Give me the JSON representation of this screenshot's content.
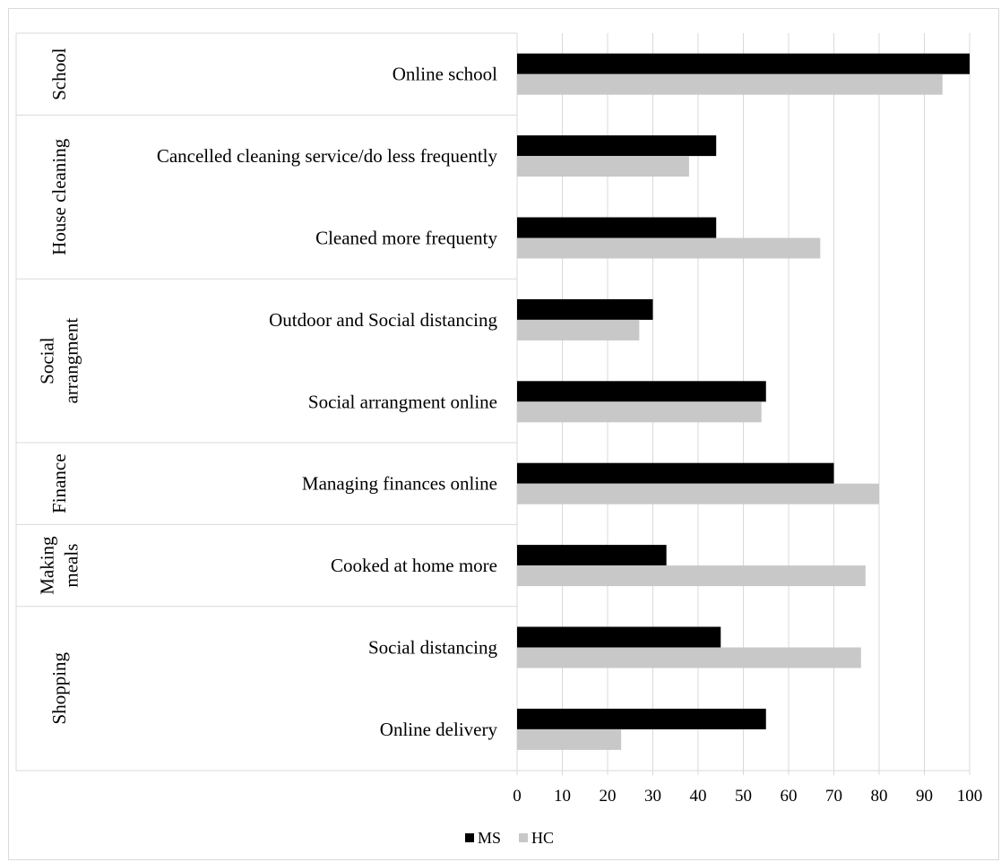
{
  "chart_data": {
    "type": "bar",
    "orientation": "horizontal",
    "groups": [
      {
        "label_lines": [
          "School"
        ],
        "categories": [
          "Online school"
        ]
      },
      {
        "label_lines": [
          "House cleaning"
        ],
        "categories": [
          "Cancelled cleaning service/do less frequently",
          "Cleaned more frequenty"
        ]
      },
      {
        "label_lines": [
          "Social",
          "arrangment"
        ],
        "categories": [
          "Outdoor and Social distancing",
          "Social arrangment online"
        ]
      },
      {
        "label_lines": [
          "Finance"
        ],
        "categories": [
          "Managing finances online"
        ]
      },
      {
        "label_lines": [
          "Making",
          "meals"
        ],
        "categories": [
          "Cooked at home more"
        ]
      },
      {
        "label_lines": [
          "Shopping"
        ],
        "categories": [
          "Social distancing",
          "Online delivery"
        ]
      }
    ],
    "categories": [
      "Online school",
      "Cancelled cleaning service/do less frequently",
      "Cleaned more frequenty",
      "Outdoor and Social distancing",
      "Social arrangment online",
      "Managing finances online",
      "Cooked at home more",
      "Social distancing",
      "Online delivery"
    ],
    "series": [
      {
        "name": "MS",
        "color": "#000000",
        "values": [
          100,
          44,
          44,
          30,
          55,
          70,
          33,
          45,
          55
        ]
      },
      {
        "name": "HC",
        "color": "#c8c8c8",
        "values": [
          94,
          38,
          67,
          27,
          54,
          80,
          77,
          76,
          23
        ]
      }
    ],
    "xlim": [
      0,
      100
    ],
    "xticks": [
      0,
      10,
      20,
      30,
      40,
      50,
      60,
      70,
      80,
      90,
      100
    ],
    "grid": true,
    "legend_position": "bottom"
  }
}
